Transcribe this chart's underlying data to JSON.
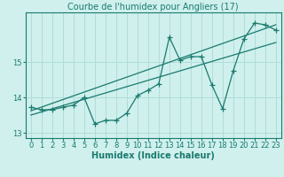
{
  "title": "Courbe de l'humidex pour Angliers (17)",
  "xlabel": "Humidex (Indice chaleur)",
  "ylabel": "",
  "bg_color": "#cff0ed",
  "grid_color": "#b0ddd8",
  "line_color": "#1a7a6e",
  "xlim": [
    -0.5,
    23.5
  ],
  "ylim": [
    12.85,
    16.4
  ],
  "xticks": [
    0,
    1,
    2,
    3,
    4,
    5,
    6,
    7,
    8,
    9,
    10,
    11,
    12,
    13,
    14,
    15,
    16,
    17,
    18,
    19,
    20,
    21,
    22,
    23
  ],
  "yticks": [
    13,
    14,
    15
  ],
  "main_x": [
    0,
    1,
    2,
    3,
    4,
    5,
    6,
    7,
    8,
    9,
    10,
    11,
    12,
    13,
    14,
    15,
    16,
    17,
    18,
    19,
    20,
    21,
    22,
    23
  ],
  "main_y": [
    13.72,
    13.65,
    13.65,
    13.72,
    13.78,
    14.0,
    13.25,
    13.35,
    13.35,
    13.55,
    14.05,
    14.2,
    14.38,
    15.7,
    15.05,
    15.15,
    15.15,
    14.35,
    13.68,
    14.75,
    15.65,
    16.1,
    16.05,
    15.9
  ],
  "line1_x": [
    0,
    23
  ],
  "line1_y": [
    13.62,
    16.05
  ],
  "line2_x": [
    0,
    23
  ],
  "line2_y": [
    13.5,
    15.55
  ],
  "title_fontsize": 7,
  "tick_fontsize": 6,
  "label_fontsize": 7
}
